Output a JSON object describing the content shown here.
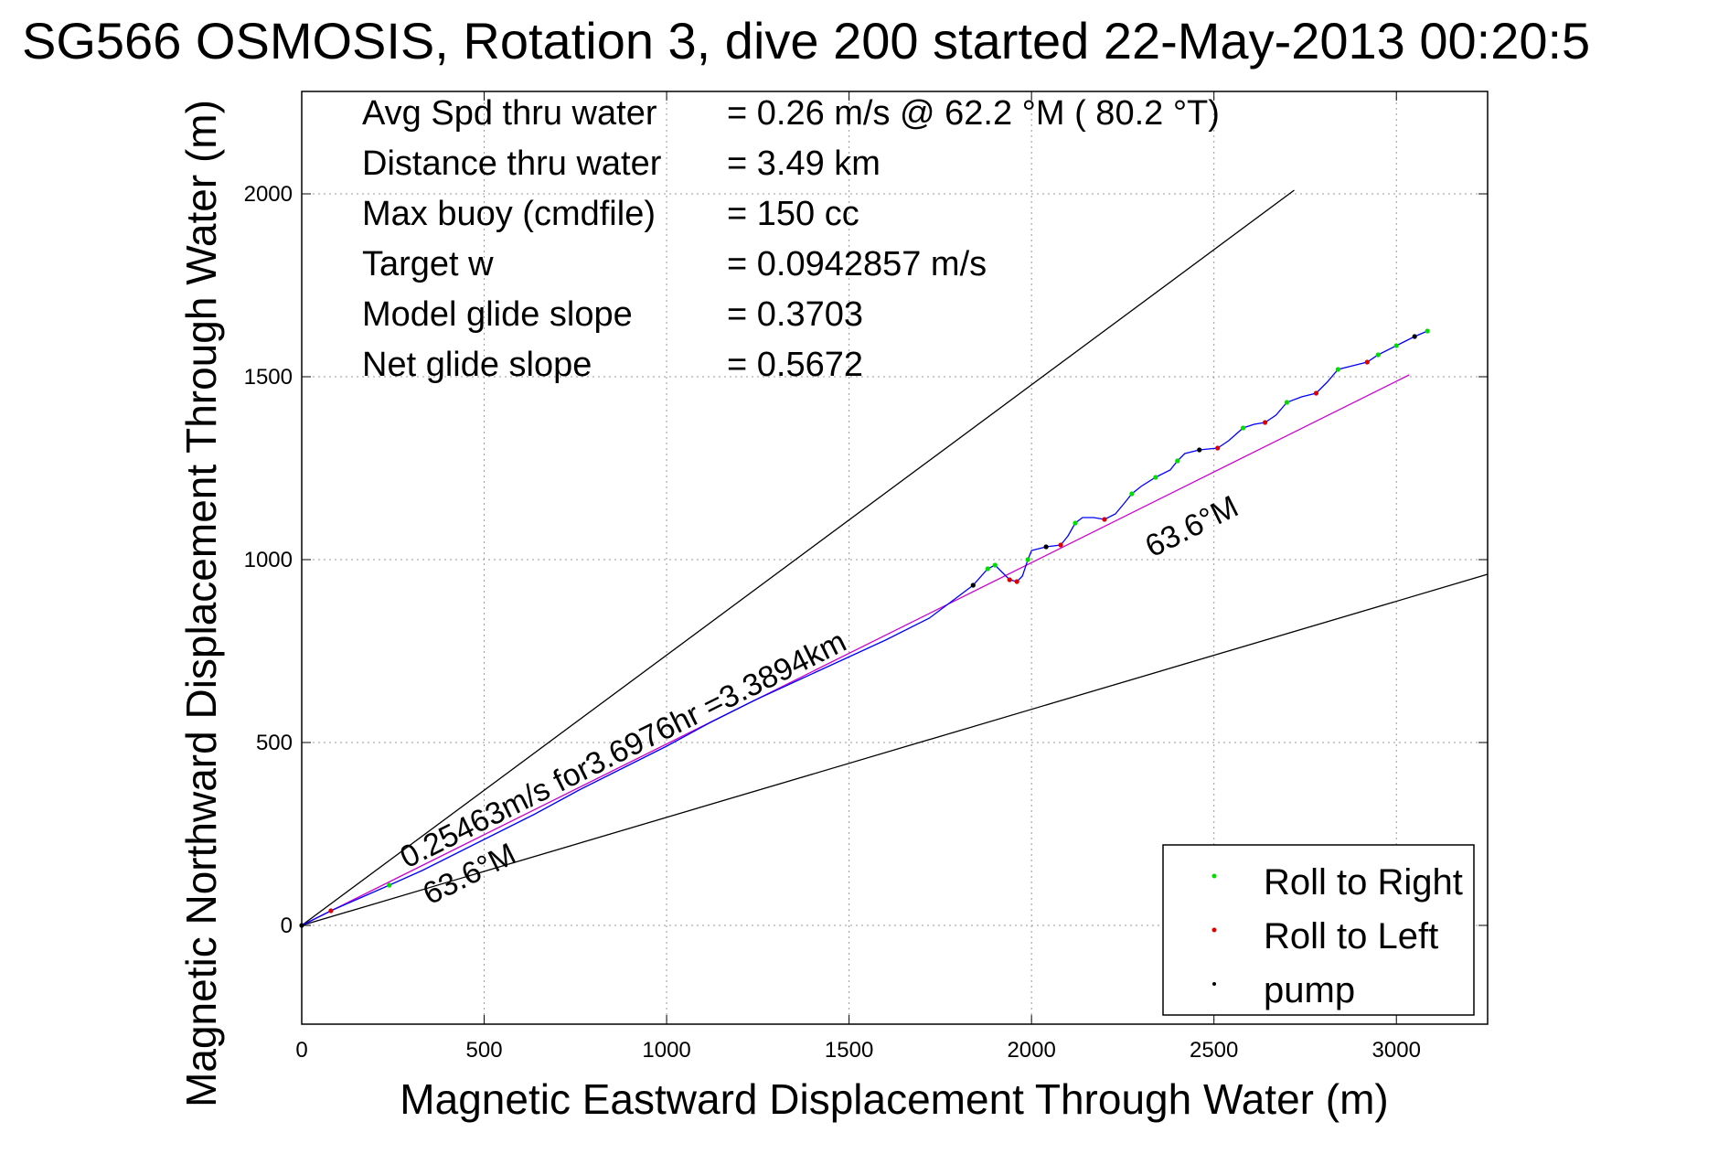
{
  "title": "SG566 OSMOSIS, Rotation 3, dive 200 started 22-May-2013 00:20:5",
  "chart_data": {
    "type": "line",
    "xlabel": "Magnetic Eastward Displacement Through Water (m)",
    "ylabel": "Magnetic Northward Displacement Through Water (m)",
    "xlim": [
      0,
      3250
    ],
    "ylim": [
      -270,
      2280
    ],
    "x_ticks": [
      "0",
      "500",
      "1000",
      "1500",
      "2000",
      "2500",
      "3000"
    ],
    "y_ticks": [
      "0",
      "500",
      "1000",
      "1500",
      "2000"
    ],
    "grid": true,
    "stats": [
      {
        "label": "Avg Spd thru water",
        "value": "=  0.26 m/s @  62.2 °M ( 80.2 °T)"
      },
      {
        "label": "Distance thru water",
        "value": "=  3.49 km"
      },
      {
        "label": "Max buoy (cmdfile)",
        "value": "= 150 cc"
      },
      {
        "label": "Target w",
        "value": "= 0.0942857 m/s"
      },
      {
        "label": "Model glide slope",
        "value": "= 0.3703"
      },
      {
        "label": "Net glide slope",
        "value": "= 0.5672"
      }
    ],
    "annotations": {
      "speed_text": "0.25463m/s for3.6976hr =3.3894km",
      "heading_upper": "63.6°M",
      "heading_lower": "63.6°M"
    },
    "reference_lines": [
      {
        "from": [
          0,
          0
        ],
        "to": [
          2720,
          2010
        ],
        "color": "#000000"
      },
      {
        "from": [
          0,
          0
        ],
        "to": [
          3250,
          960
        ],
        "color": "#000000"
      },
      {
        "from": [
          0,
          0
        ],
        "to": [
          3035,
          1505
        ],
        "color": "#cc00cc"
      }
    ],
    "track": {
      "color": "#0000ff",
      "points": [
        [
          0,
          0
        ],
        [
          80,
          40
        ],
        [
          160,
          75
        ],
        [
          240,
          110
        ],
        [
          330,
          150
        ],
        [
          420,
          195
        ],
        [
          520,
          245
        ],
        [
          640,
          305
        ],
        [
          760,
          370
        ],
        [
          880,
          430
        ],
        [
          1000,
          490
        ],
        [
          1120,
          555
        ],
        [
          1240,
          615
        ],
        [
          1360,
          670
        ],
        [
          1480,
          725
        ],
        [
          1600,
          780
        ],
        [
          1720,
          840
        ],
        [
          1840,
          930
        ],
        [
          1880,
          975
        ],
        [
          1900,
          985
        ],
        [
          1920,
          965
        ],
        [
          1940,
          945
        ],
        [
          1960,
          940
        ],
        [
          1975,
          955
        ],
        [
          1990,
          1000
        ],
        [
          2000,
          1025
        ],
        [
          2040,
          1035
        ],
        [
          2080,
          1040
        ],
        [
          2100,
          1065
        ],
        [
          2120,
          1100
        ],
        [
          2140,
          1115
        ],
        [
          2170,
          1115
        ],
        [
          2200,
          1110
        ],
        [
          2230,
          1125
        ],
        [
          2255,
          1155
        ],
        [
          2275,
          1180
        ],
        [
          2300,
          1200
        ],
        [
          2340,
          1225
        ],
        [
          2380,
          1245
        ],
        [
          2400,
          1270
        ],
        [
          2420,
          1290
        ],
        [
          2460,
          1300
        ],
        [
          2510,
          1305
        ],
        [
          2540,
          1325
        ],
        [
          2580,
          1360
        ],
        [
          2610,
          1370
        ],
        [
          2640,
          1375
        ],
        [
          2670,
          1395
        ],
        [
          2700,
          1430
        ],
        [
          2740,
          1445
        ],
        [
          2780,
          1455
        ],
        [
          2810,
          1485
        ],
        [
          2840,
          1520
        ],
        [
          2880,
          1530
        ],
        [
          2920,
          1540
        ],
        [
          2950,
          1560
        ],
        [
          3000,
          1585
        ],
        [
          3050,
          1610
        ],
        [
          3085,
          1625
        ]
      ]
    },
    "series": [
      {
        "name": "Roll to Right",
        "color": "#00dd00",
        "points": [
          [
            240,
            110
          ],
          [
            1880,
            975
          ],
          [
            1900,
            985
          ],
          [
            1990,
            1000
          ],
          [
            2120,
            1100
          ],
          [
            2275,
            1180
          ],
          [
            2340,
            1225
          ],
          [
            2400,
            1270
          ],
          [
            2580,
            1360
          ],
          [
            2700,
            1430
          ],
          [
            2840,
            1520
          ],
          [
            2950,
            1560
          ],
          [
            3000,
            1585
          ],
          [
            3085,
            1625
          ]
        ]
      },
      {
        "name": "Roll to Left",
        "color": "#dd0000",
        "points": [
          [
            80,
            40
          ],
          [
            1940,
            945
          ],
          [
            1960,
            940
          ],
          [
            2080,
            1040
          ],
          [
            2200,
            1110
          ],
          [
            2510,
            1305
          ],
          [
            2640,
            1375
          ],
          [
            2780,
            1455
          ],
          [
            2920,
            1540
          ]
        ]
      },
      {
        "name": "pump",
        "color": "#000000",
        "points": [
          [
            0,
            0
          ],
          [
            1840,
            930
          ],
          [
            2040,
            1035
          ],
          [
            2460,
            1300
          ],
          [
            3050,
            1610
          ]
        ]
      }
    ],
    "legend_position": "bottom-right"
  }
}
